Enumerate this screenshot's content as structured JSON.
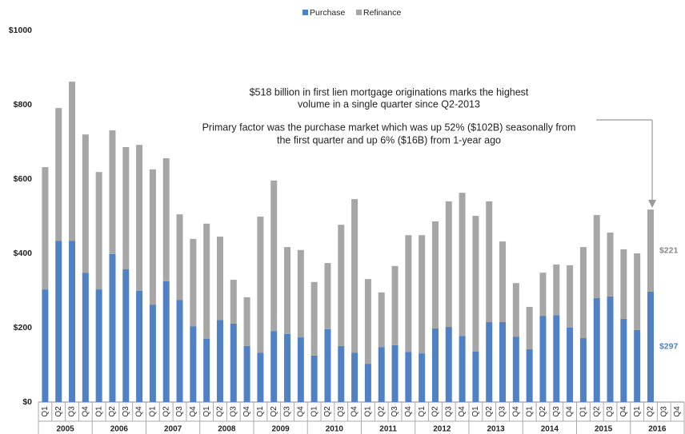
{
  "chart_data": {
    "type": "bar",
    "stacked": true,
    "legend": "top",
    "annotations": [
      [
        "$518 billion in first lien mortgage originations marks the highest",
        "volume in a single quarter since Q2-2013"
      ],
      [
        "Primary factor was the purchase market which was up 52% ($102B) seasonally from",
        "the first quarter and up 6% ($16B) from 1-year ago"
      ]
    ],
    "groups": [
      "2005",
      "2006",
      "2007",
      "2008",
      "2009",
      "2010",
      "2011",
      "2012",
      "2013",
      "2014",
      "2015",
      "2016"
    ],
    "categories": [
      "Q1",
      "Q2",
      "Q3",
      "Q4",
      "Q1",
      "Q2",
      "Q3",
      "Q4",
      "Q1",
      "Q2",
      "Q3",
      "Q4",
      "Q1",
      "Q2",
      "Q3",
      "Q4",
      "Q1",
      "Q2",
      "Q3",
      "Q4",
      "Q1",
      "Q2",
      "Q3",
      "Q4",
      "Q1",
      "Q2",
      "Q3",
      "Q4",
      "Q1",
      "Q2",
      "Q3",
      "Q4",
      "Q1",
      "Q2",
      "Q3",
      "Q4",
      "Q1",
      "Q2",
      "Q3",
      "Q4",
      "Q1",
      "Q2",
      "Q3",
      "Q4",
      "Q1",
      "Q2",
      "Q3",
      "Q4"
    ],
    "series": [
      {
        "name": "Purchase",
        "color": "#4f81c4",
        "values": [
          303,
          434,
          434,
          348,
          303,
          398,
          357,
          299,
          262,
          325,
          275,
          204,
          170,
          221,
          211,
          151,
          133,
          191,
          183,
          174,
          125,
          196,
          151,
          133,
          103,
          148,
          153,
          135,
          131,
          198,
          202,
          178,
          136,
          215,
          215,
          176,
          142,
          232,
          234,
          200,
          172,
          280,
          284,
          224,
          194,
          297,
          null,
          null
        ],
        "value_labels": [
          null,
          null,
          null,
          null,
          null,
          null,
          null,
          null,
          null,
          null,
          null,
          null,
          null,
          null,
          null,
          null,
          null,
          null,
          null,
          null,
          null,
          null,
          null,
          null,
          null,
          null,
          null,
          null,
          null,
          null,
          null,
          null,
          null,
          null,
          null,
          null,
          null,
          null,
          null,
          null,
          null,
          null,
          null,
          null,
          null,
          "$297",
          null,
          null
        ]
      },
      {
        "name": "Refinance",
        "color": "#a6a6a6",
        "values": [
          329,
          357,
          428,
          372,
          316,
          333,
          329,
          393,
          364,
          331,
          230,
          235,
          310,
          224,
          118,
          131,
          366,
          405,
          234,
          235,
          198,
          178,
          326,
          413,
          228,
          147,
          213,
          314,
          318,
          288,
          338,
          385,
          365,
          325,
          217,
          144,
          114,
          116,
          136,
          168,
          245,
          223,
          172,
          187,
          206,
          221,
          null,
          null
        ],
        "value_labels": [
          null,
          null,
          null,
          null,
          null,
          null,
          null,
          null,
          null,
          null,
          null,
          null,
          null,
          null,
          null,
          null,
          null,
          null,
          null,
          null,
          null,
          null,
          null,
          null,
          null,
          null,
          null,
          null,
          null,
          null,
          null,
          null,
          null,
          null,
          null,
          null,
          null,
          null,
          null,
          null,
          null,
          null,
          null,
          null,
          null,
          "$221",
          null,
          null
        ]
      }
    ],
    "ylim": [
      0,
      1000
    ],
    "yticks": [
      {
        "value": 0,
        "label": "$0"
      },
      {
        "value": 200,
        "label": "$200"
      },
      {
        "value": 400,
        "label": "$400"
      },
      {
        "value": 600,
        "label": "$600"
      },
      {
        "value": 800,
        "label": "$800"
      },
      {
        "value": 1000,
        "label": "$1000"
      }
    ],
    "grid": false
  }
}
